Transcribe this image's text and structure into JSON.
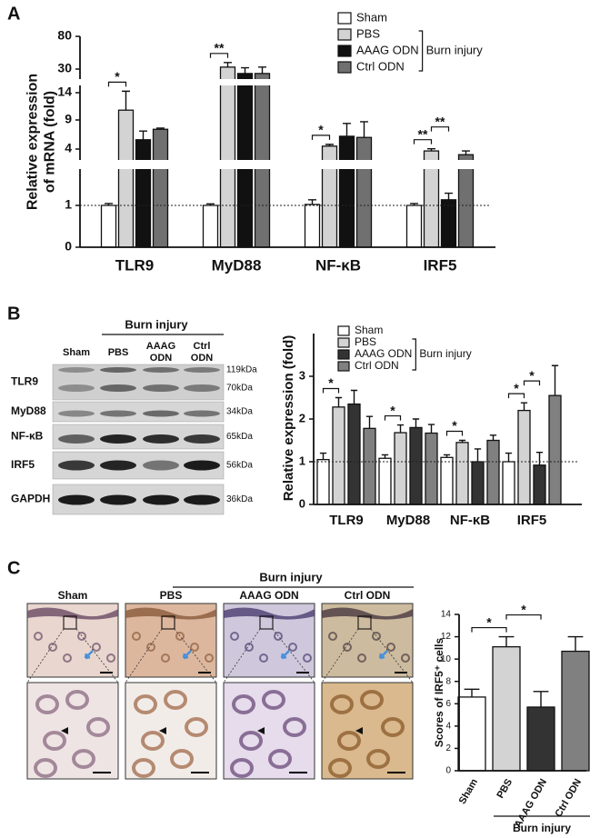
{
  "panel_labels": [
    "A",
    "B",
    "C"
  ],
  "chart_data": [
    {
      "type": "bar",
      "ylabel": [
        "Relative expression",
        "of mRNA (fold)"
      ],
      "categories": [
        "TLR9",
        "MyD88",
        "NF-κB",
        "IRF5"
      ],
      "series": [
        {
          "name": "Sham",
          "color": "#ffffff",
          "values": [
            1.0,
            1.0,
            1.05,
            1.0
          ],
          "errors": [
            0.1,
            0.08,
            0.25,
            0.1
          ]
        },
        {
          "name": "PBS",
          "color": "#d3d3d3",
          "values": [
            10.8,
            33,
            4.5,
            3.9
          ],
          "errors": [
            4.2,
            7,
            0.3,
            0.15
          ]
        },
        {
          "name": "AAAG ODN",
          "color": "#111111",
          "values": [
            5.6,
            27,
            6.2,
            1.3
          ],
          "errors": [
            1.5,
            5,
            2.2,
            0.35
          ]
        },
        {
          "name": "Ctrl ODN",
          "color": "#707070",
          "values": [
            7.4,
            27,
            6.0,
            3.7
          ],
          "errors": [
            0.2,
            6,
            2.7,
            0.2
          ]
        }
      ],
      "ylim": [
        0,
        80
      ],
      "yticks": [
        0,
        1,
        4,
        9,
        14,
        30,
        80
      ],
      "reference_line": 1,
      "legend_group": {
        "label": "Burn injury",
        "series": [
          1,
          2,
          3
        ]
      },
      "significance": [
        {
          "from": [
            0,
            0
          ],
          "to": [
            0,
            1
          ],
          "label": "*"
        },
        {
          "from": [
            1,
            0
          ],
          "to": [
            1,
            1
          ],
          "label": "**"
        },
        {
          "from": [
            2,
            0
          ],
          "to": [
            2,
            1
          ],
          "label": "*"
        },
        {
          "from": [
            3,
            0
          ],
          "to": [
            3,
            1
          ],
          "label": "**"
        },
        {
          "from": [
            3,
            1
          ],
          "to": [
            3,
            2
          ],
          "label": "**"
        }
      ]
    },
    {
      "type": "bar",
      "ylabel": [
        "Relative expression (fold)"
      ],
      "categories": [
        "TLR9",
        "MyD88",
        "NF-κB",
        "IRF5"
      ],
      "series": [
        {
          "name": "Sham",
          "color": "#ffffff",
          "values": [
            1.05,
            1.08,
            1.1,
            1.0
          ],
          "errors": [
            0.15,
            0.08,
            0.06,
            0.2
          ]
        },
        {
          "name": "PBS",
          "color": "#d3d3d3",
          "values": [
            2.28,
            1.68,
            1.45,
            2.2
          ],
          "errors": [
            0.22,
            0.18,
            0.05,
            0.18
          ]
        },
        {
          "name": "AAAG ODN",
          "color": "#333333",
          "values": [
            2.35,
            1.8,
            1.0,
            0.92
          ],
          "errors": [
            0.32,
            0.2,
            0.3,
            0.3
          ]
        },
        {
          "name": "Ctrl ODN",
          "color": "#808080",
          "values": [
            1.78,
            1.67,
            1.5,
            2.55
          ],
          "errors": [
            0.28,
            0.2,
            0.12,
            0.7
          ]
        }
      ],
      "ylim": [
        0,
        4
      ],
      "yticks": [
        0,
        1,
        2,
        3
      ],
      "reference_line": 1,
      "legend_group": {
        "label": "Burn injury",
        "series": [
          1,
          2,
          3
        ]
      },
      "significance": [
        {
          "from": [
            0,
            0
          ],
          "to": [
            0,
            1
          ],
          "label": "*"
        },
        {
          "from": [
            1,
            0
          ],
          "to": [
            1,
            1
          ],
          "label": "*"
        },
        {
          "from": [
            2,
            0
          ],
          "to": [
            2,
            1
          ],
          "label": "*"
        },
        {
          "from": [
            3,
            0
          ],
          "to": [
            3,
            1
          ],
          "label": "*"
        },
        {
          "from": [
            3,
            1
          ],
          "to": [
            3,
            2
          ],
          "label": "*"
        }
      ]
    },
    {
      "type": "bar",
      "ylabel": [
        "Scores of IRF5⁺ cells"
      ],
      "categories": [
        "Sham",
        "PBS",
        "AAAG ODN",
        "Ctrl ODN"
      ],
      "values": [
        6.6,
        11.1,
        5.7,
        10.7
      ],
      "errors": [
        0.7,
        0.9,
        1.4,
        1.3
      ],
      "colors": [
        "#ffffff",
        "#d3d3d3",
        "#333333",
        "#808080"
      ],
      "ylim": [
        0,
        14
      ],
      "yticks": [
        0,
        2,
        4,
        6,
        8,
        10,
        12,
        14
      ],
      "x_group": {
        "label": "Burn injury",
        "categories": [
          1,
          3
        ]
      },
      "significance": [
        {
          "from": [
            0,
            0
          ],
          "to": [
            1,
            0
          ],
          "label": "*"
        },
        {
          "from": [
            1,
            0
          ],
          "to": [
            2,
            0
          ],
          "label": "*"
        }
      ]
    }
  ],
  "blot": {
    "group_label": "Burn injury",
    "lanes": [
      [
        "Sham"
      ],
      [
        "PBS"
      ],
      [
        "AAAG",
        "ODN"
      ],
      [
        "Ctrl",
        "ODN"
      ]
    ],
    "rows": [
      {
        "label": "TLR9",
        "markers": [
          "119kDa",
          "70kDa"
        ]
      },
      {
        "label": "MyD88",
        "markers": [
          "34kDa"
        ]
      },
      {
        "label": "NF-κB",
        "markers": [
          "65kDa"
        ]
      },
      {
        "label": "IRF5",
        "markers": [
          "56kDa"
        ]
      },
      {
        "label": "GAPDH",
        "markers": [
          "36kDa"
        ]
      }
    ]
  },
  "histology": {
    "group_label": "Burn injury",
    "columns": [
      "Sham",
      "PBS",
      "AAAG ODN",
      "Ctrl ODN"
    ]
  }
}
